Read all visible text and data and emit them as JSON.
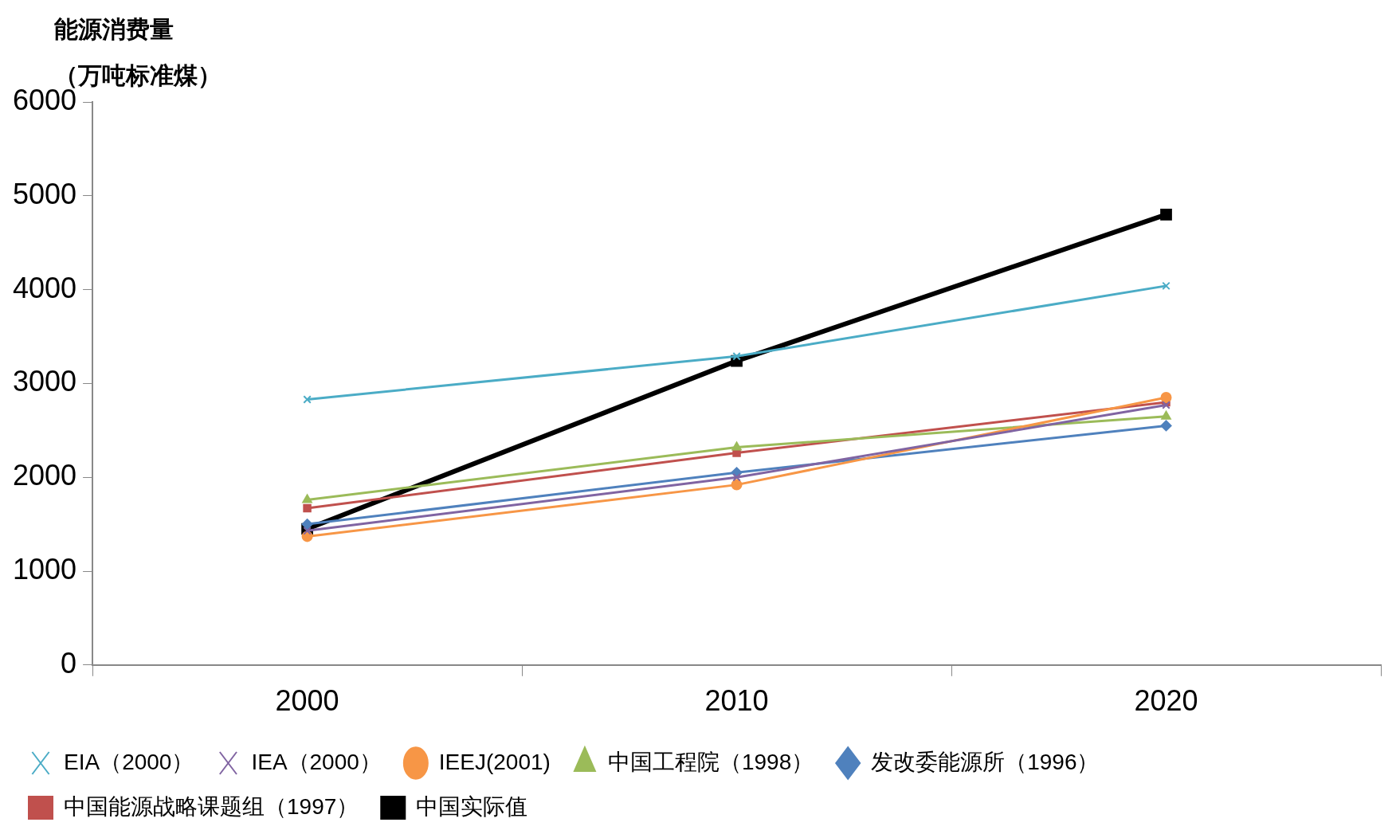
{
  "chart_data": {
    "type": "line",
    "ylabel": "能源消费量（万吨标准煤）",
    "categories": [
      "2000",
      "2010",
      "2020"
    ],
    "ylim": [
      0,
      6000
    ],
    "yticks": [
      0,
      1000,
      2000,
      3000,
      4000,
      5000,
      6000
    ],
    "grid": false,
    "legend": "bottom",
    "line_style": "solid",
    "series": [
      {
        "name": "EIA（2000）",
        "color": "#4bacc6",
        "marker": "cross",
        "values": [
          2830,
          3290,
          4040
        ]
      },
      {
        "name": "IEA（2000）",
        "color": "#8064a2",
        "marker": "cross",
        "values": [
          1430,
          2000,
          2770
        ]
      },
      {
        "name": "IEEJ(2001)",
        "color": "#f79646",
        "marker": "circle",
        "values": [
          1370,
          1920,
          2850
        ]
      },
      {
        "name": "中国工程院（1998）",
        "color": "#9bbb59",
        "marker": "triangle",
        "values": [
          1760,
          2320,
          2650
        ]
      },
      {
        "name": "发改委能源所（1996）",
        "color": "#4f81bd",
        "marker": "diamond",
        "values": [
          1500,
          2050,
          2550
        ]
      },
      {
        "name": "中国能源战略课题组（1997）",
        "color": "#c0504d",
        "marker": "square",
        "values": [
          1670,
          2260,
          2800
        ]
      },
      {
        "name": "中国实际值",
        "color": "#000000",
        "marker": "square",
        "values": [
          1450,
          3240,
          4800
        ]
      }
    ]
  }
}
